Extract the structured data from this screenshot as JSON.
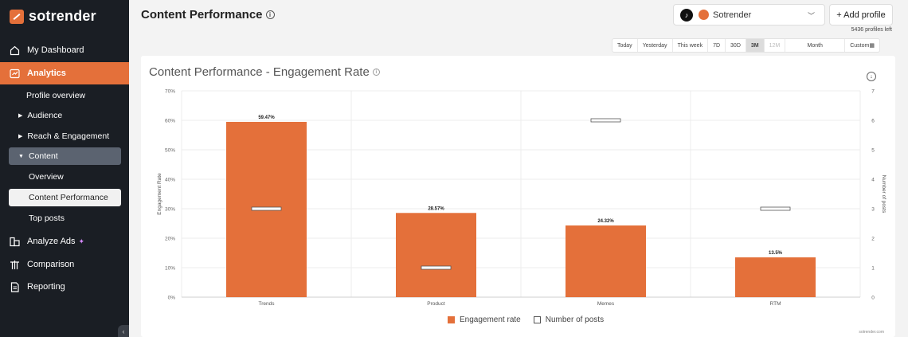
{
  "brand": {
    "name": "sotrender"
  },
  "nav": {
    "dashboard": "My Dashboard",
    "analytics": "Analytics",
    "profile_overview": "Profile overview",
    "audience": "Audience",
    "reach": "Reach & Engagement",
    "content": "Content",
    "overview": "Overview",
    "content_performance": "Content Performance",
    "top_posts": "Top posts",
    "analyze_ads": "Analyze Ads",
    "comparison": "Comparison",
    "reporting": "Reporting"
  },
  "header": {
    "title": "Content Performance",
    "profile_name": "Sotrender",
    "add_profile": "+ Add profile",
    "profiles_left": "5436 profiles left"
  },
  "ranges": [
    {
      "label": "Today"
    },
    {
      "label": "Yesterday"
    },
    {
      "label": "This week"
    },
    {
      "label": "7D"
    },
    {
      "label": "30D"
    },
    {
      "label": "3M",
      "active": true
    },
    {
      "label": "12M",
      "disabled": true
    },
    {
      "label": "Month",
      "wide": true
    },
    {
      "label": "Custom"
    }
  ],
  "card": {
    "credit": "sotrender.com"
  },
  "chart_data": {
    "type": "bar",
    "title": "Content Performance - Engagement Rate",
    "categories": [
      "Trends",
      "Product",
      "Memes",
      "RTM"
    ],
    "series": [
      {
        "name": "Engagement rate",
        "type": "bar",
        "axis": "left",
        "values": [
          59.47,
          28.57,
          24.32,
          13.5
        ],
        "labels": [
          "59.47%",
          "28.57%",
          "24.32%",
          "13.5%"
        ],
        "color": "#e4703a"
      },
      {
        "name": "Number of posts",
        "type": "marker",
        "axis": "right",
        "values": [
          3,
          1,
          6,
          3
        ]
      }
    ],
    "ylabel": "Engagement Rate",
    "y2label": "Number of posts",
    "ylim": [
      0,
      70
    ],
    "y2lim": [
      0,
      7
    ],
    "yticks": [
      "0%",
      "10%",
      "20%",
      "30%",
      "40%",
      "50%",
      "60%",
      "70%"
    ],
    "y2ticks": [
      "0",
      "1",
      "2",
      "3",
      "4",
      "5",
      "6",
      "7"
    ],
    "grid": true,
    "legend": "bottom"
  }
}
